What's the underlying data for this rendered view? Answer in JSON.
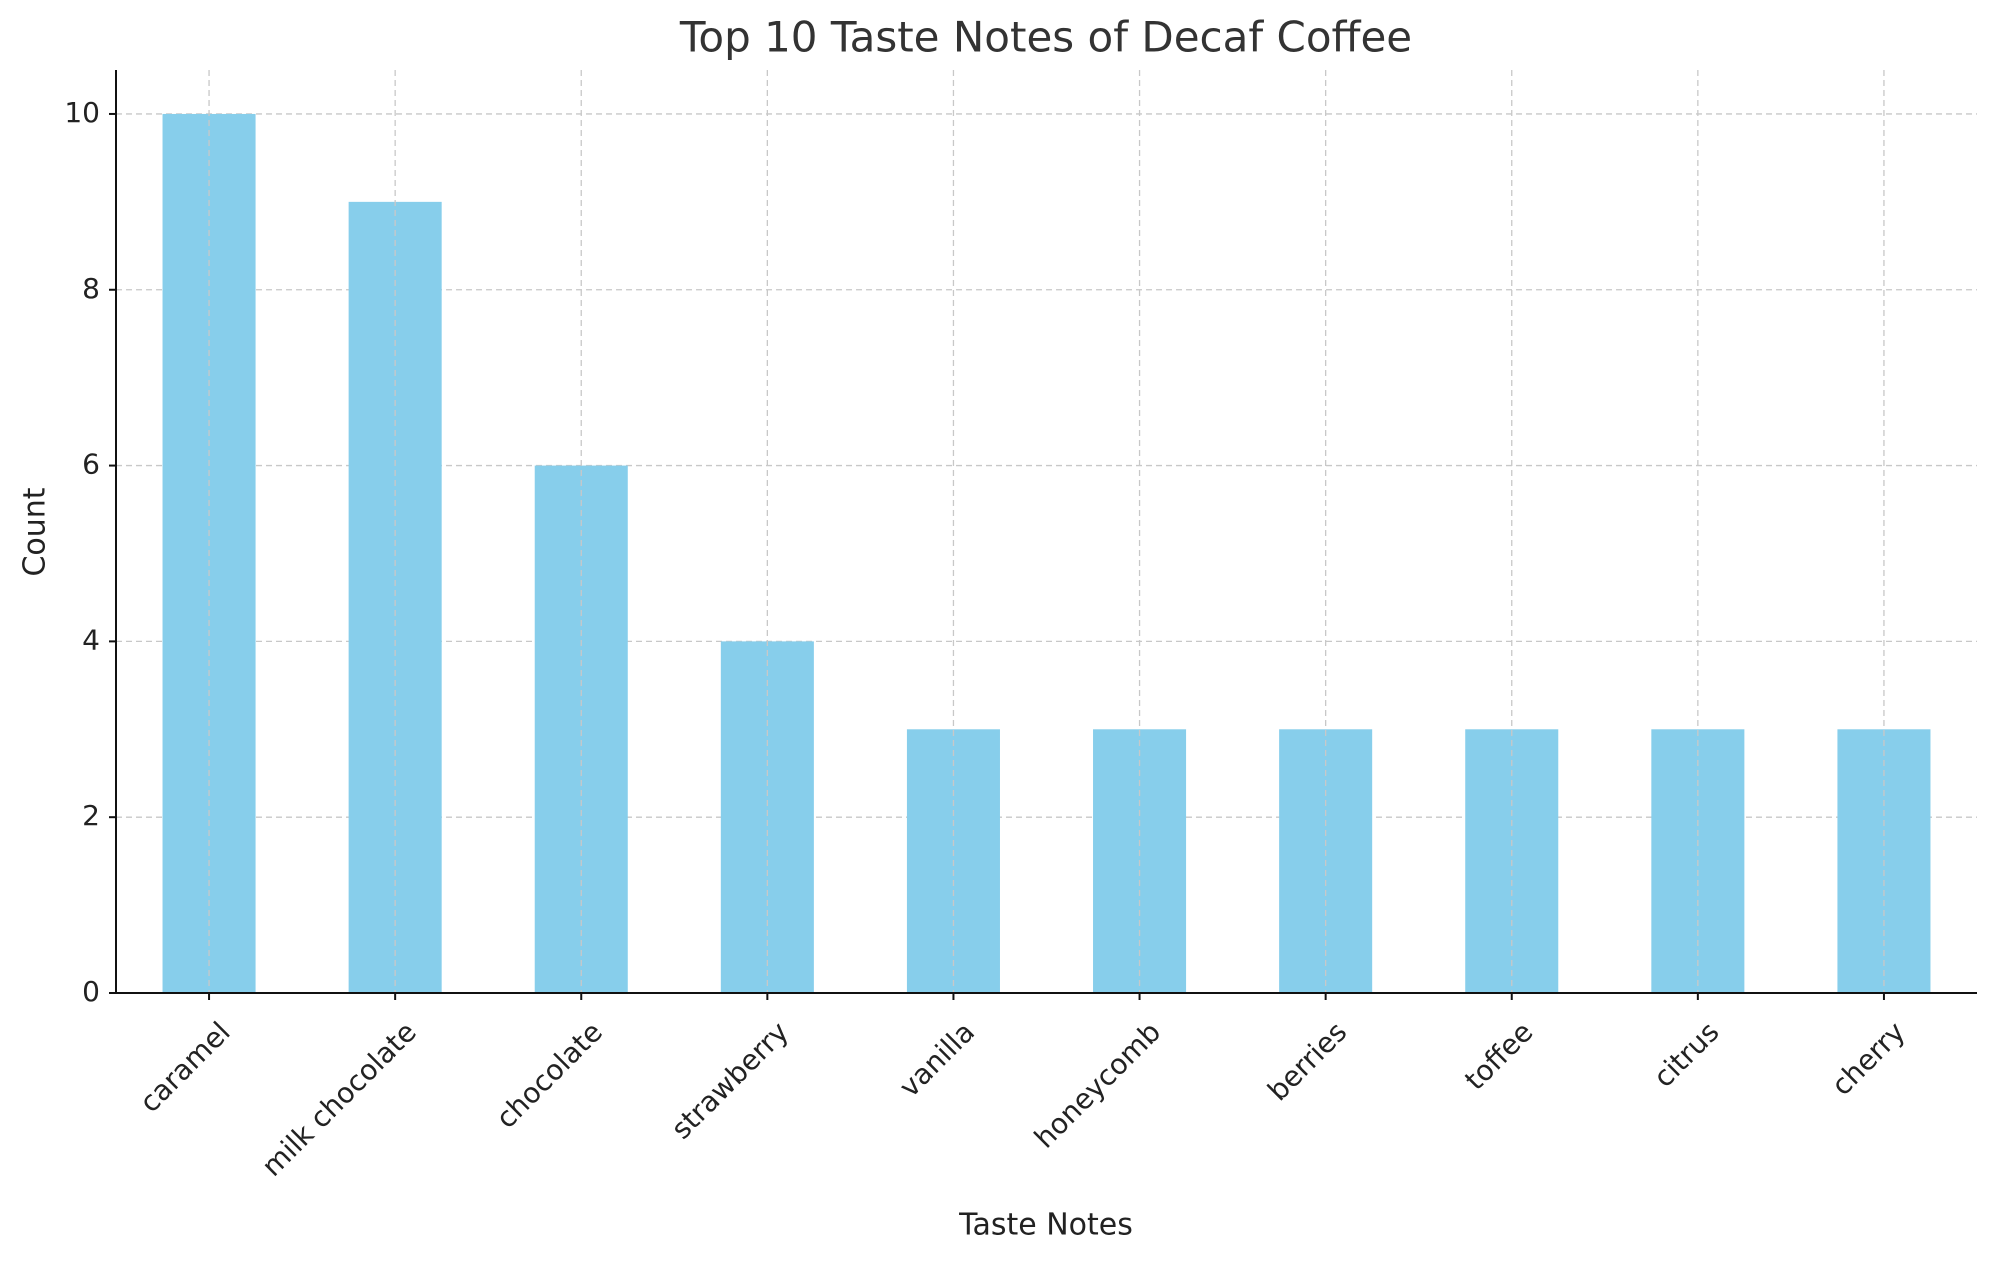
{
  "chart_data": {
    "type": "bar",
    "title": "Top 10 Taste Notes of Decaf Coffee",
    "x_label": "Taste Notes",
    "y_label": "Count",
    "categories": [
      "caramel",
      "milk chocolate",
      "chocolate",
      "strawberry",
      "vanilla",
      "honeycomb",
      "berries",
      "toffee",
      "citrus",
      "cherry"
    ],
    "values": [
      10,
      9,
      6,
      4,
      3,
      3,
      3,
      3,
      3,
      3
    ],
    "color": "#87ceeb",
    "ylim": [
      0,
      10.5
    ],
    "yticks": [
      0,
      2,
      4,
      6,
      8,
      10
    ],
    "grid": true
  }
}
